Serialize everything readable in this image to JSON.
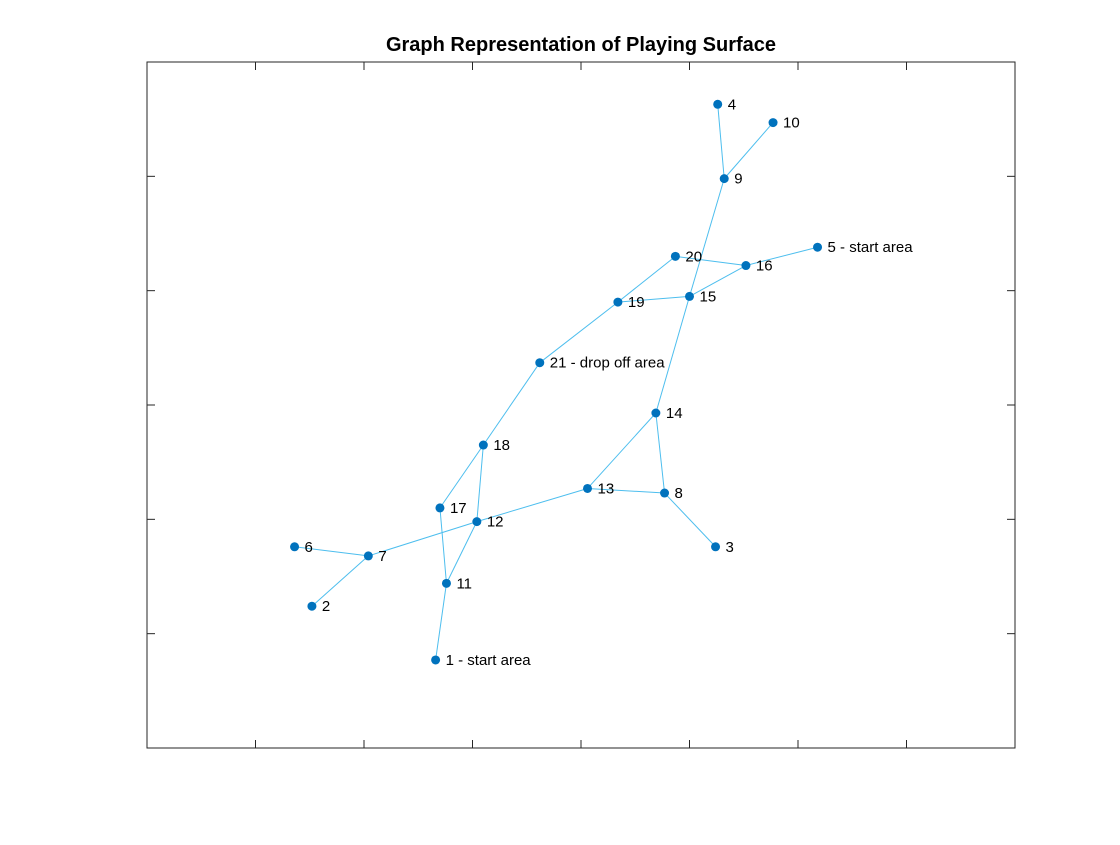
{
  "title": "Graph Representation of Playing Surface",
  "colors": {
    "node": "#0072BD",
    "edge": "#4DBEEE",
    "axes": "#262626"
  },
  "axis": {
    "xlim": [
      0,
      8
    ],
    "ylim": [
      0,
      6
    ],
    "xticks": [
      1,
      2,
      3,
      4,
      5,
      6,
      7
    ],
    "yticks": [
      1,
      2,
      3,
      4,
      5
    ]
  },
  "nodes": [
    {
      "id": 1,
      "label": "1 - start area",
      "x": 2.66,
      "y": 0.77
    },
    {
      "id": 2,
      "label": "2",
      "x": 1.52,
      "y": 1.24
    },
    {
      "id": 3,
      "label": "3",
      "x": 5.24,
      "y": 1.76
    },
    {
      "id": 4,
      "label": "4",
      "x": 5.26,
      "y": 5.63
    },
    {
      "id": 5,
      "label": "5 - start area",
      "x": 6.18,
      "y": 4.38
    },
    {
      "id": 6,
      "label": "6",
      "x": 1.36,
      "y": 1.76
    },
    {
      "id": 7,
      "label": "7",
      "x": 2.04,
      "y": 1.68
    },
    {
      "id": 8,
      "label": "8",
      "x": 4.77,
      "y": 2.23
    },
    {
      "id": 9,
      "label": "9",
      "x": 5.32,
      "y": 4.98
    },
    {
      "id": 10,
      "label": "10",
      "x": 5.77,
      "y": 5.47
    },
    {
      "id": 11,
      "label": "11",
      "x": 2.76,
      "y": 1.44
    },
    {
      "id": 12,
      "label": "12",
      "x": 3.04,
      "y": 1.98
    },
    {
      "id": 13,
      "label": "13",
      "x": 4.06,
      "y": 2.27
    },
    {
      "id": 14,
      "label": "14",
      "x": 4.69,
      "y": 2.93
    },
    {
      "id": 15,
      "label": "15",
      "x": 5.0,
      "y": 3.95
    },
    {
      "id": 16,
      "label": "16",
      "x": 5.52,
      "y": 4.22
    },
    {
      "id": 17,
      "label": "17",
      "x": 2.7,
      "y": 2.1
    },
    {
      "id": 18,
      "label": "18",
      "x": 3.1,
      "y": 2.65
    },
    {
      "id": 19,
      "label": "19",
      "x": 4.34,
      "y": 3.9
    },
    {
      "id": 20,
      "label": "20",
      "x": 4.87,
      "y": 4.3
    },
    {
      "id": 21,
      "label": "21 - drop off area",
      "x": 3.62,
      "y": 3.37
    }
  ],
  "edges": [
    [
      4,
      9
    ],
    [
      10,
      9
    ],
    [
      9,
      15
    ],
    [
      20,
      16
    ],
    [
      5,
      16
    ],
    [
      16,
      15
    ],
    [
      20,
      19
    ],
    [
      19,
      15
    ],
    [
      19,
      21
    ],
    [
      15,
      14
    ],
    [
      21,
      18
    ],
    [
      14,
      13
    ],
    [
      14,
      8
    ],
    [
      13,
      8
    ],
    [
      8,
      3
    ],
    [
      13,
      12
    ],
    [
      18,
      17
    ],
    [
      18,
      12
    ],
    [
      12,
      7
    ],
    [
      12,
      11
    ],
    [
      17,
      11
    ],
    [
      6,
      7
    ],
    [
      7,
      2
    ],
    [
      11,
      1
    ]
  ]
}
